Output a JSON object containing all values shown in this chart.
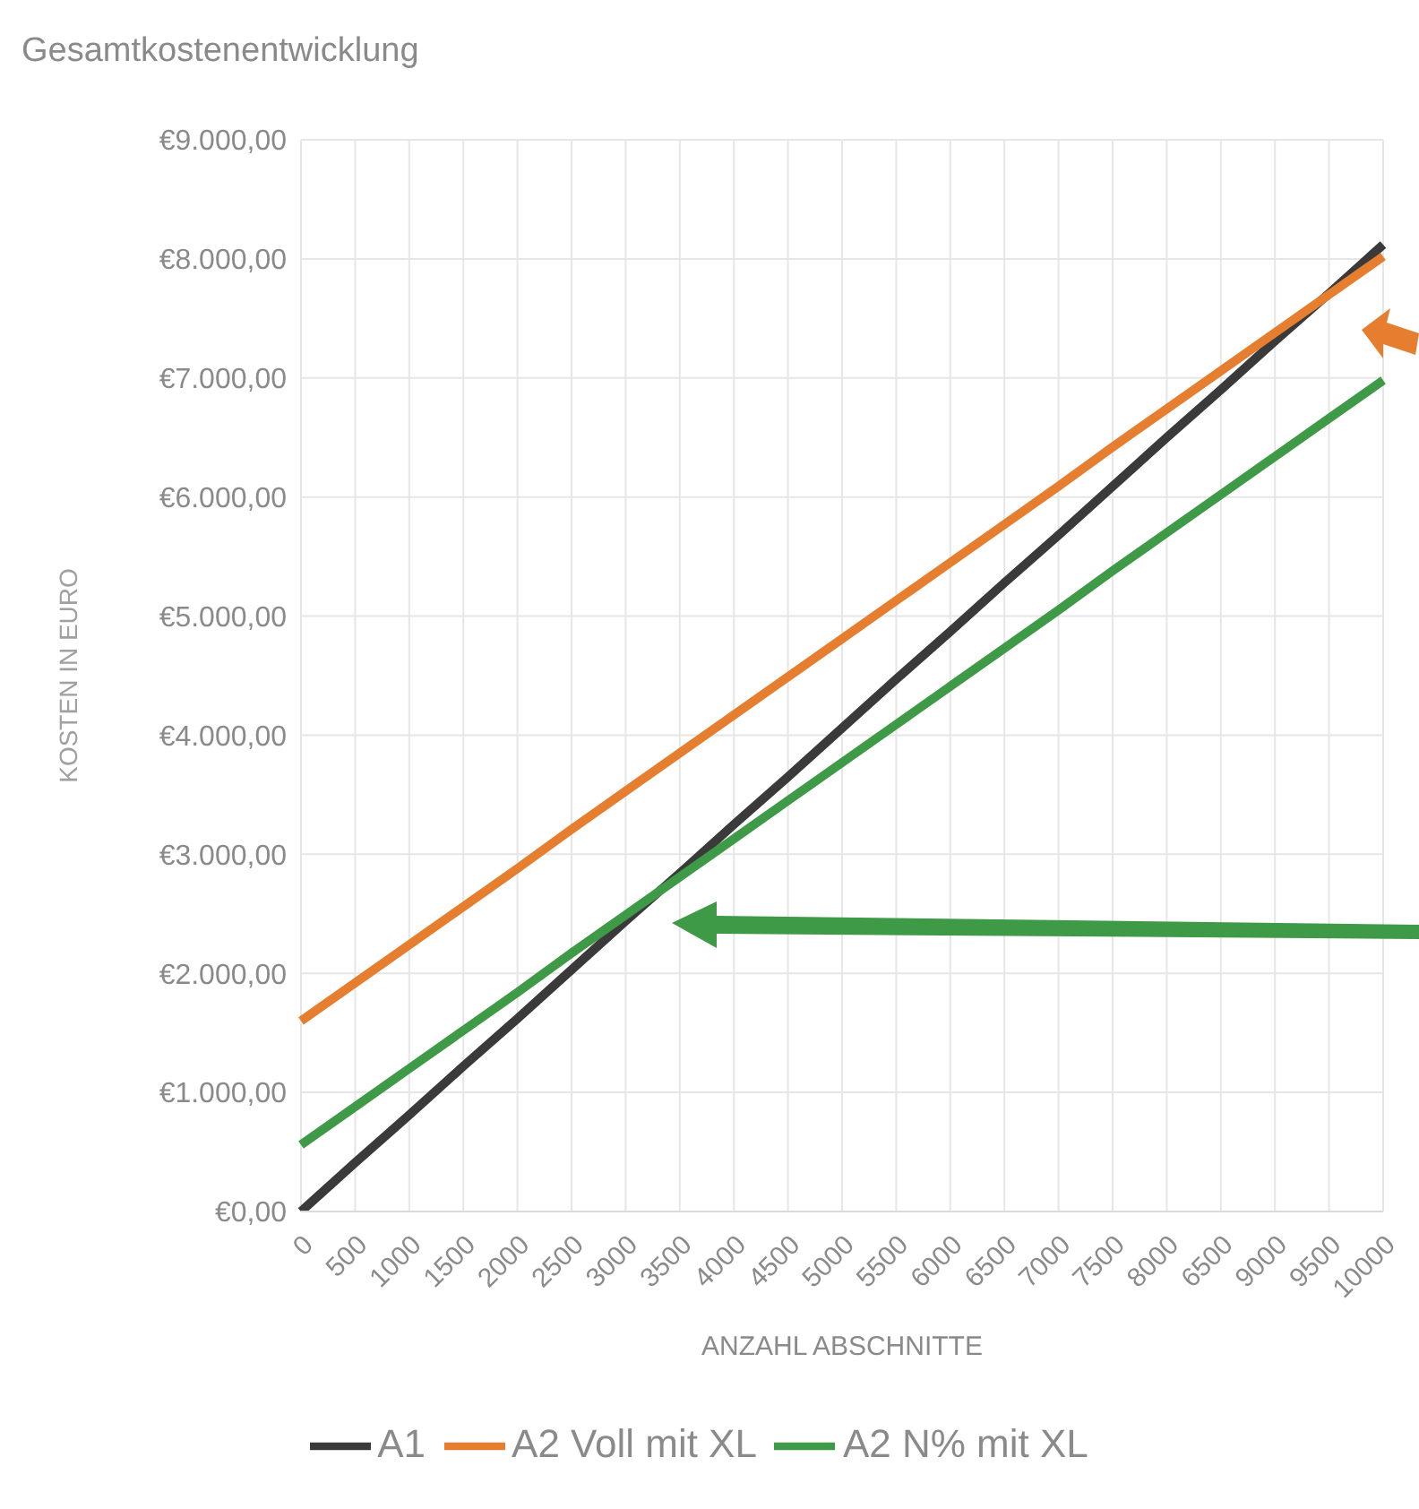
{
  "chart_data": {
    "type": "line",
    "title": "Gesamtkostenentwicklung",
    "xlabel": "ANZAHL ABSCHNITTE",
    "ylabel": "KOSTEN IN EURO",
    "categories": [
      "0",
      "500",
      "1000",
      "1500",
      "2000",
      "2500",
      "3000",
      "3500",
      "4000",
      "4500",
      "5000",
      "5500",
      "6000",
      "6500",
      "7000",
      "7500",
      "8000",
      "6500",
      "9000",
      "9500",
      "10000"
    ],
    "series": [
      {
        "name": "A1",
        "color": "#3a3a3a",
        "values": [
          0,
          410,
          810,
          1220,
          1620,
          2030,
          2440,
          2840,
          3250,
          3650,
          4060,
          4470,
          4870,
          5280,
          5680,
          6090,
          6500,
          6900,
          7310,
          7710,
          8120
        ]
      },
      {
        "name": "A2 Voll mit XL",
        "color": "#e67e30",
        "values": [
          1600,
          1920,
          2240,
          2560,
          2880,
          3210,
          3530,
          3850,
          4170,
          4490,
          4810,
          5130,
          5450,
          5770,
          6090,
          6420,
          6740,
          7060,
          7380,
          7700,
          8020
        ]
      },
      {
        "name": "A2 N% mit XL",
        "color": "#3f9a47",
        "values": [
          560,
          880,
          1200,
          1520,
          1840,
          2170,
          2490,
          2810,
          3130,
          3450,
          3770,
          4090,
          4410,
          4730,
          5050,
          5380,
          5700,
          6020,
          6340,
          6660,
          6980
        ]
      }
    ],
    "ylim": [
      0,
      9000
    ],
    "yticks": [
      {
        "value": 0,
        "label": "€0,00"
      },
      {
        "value": 1000,
        "label": "€1.000,00"
      },
      {
        "value": 2000,
        "label": "€2.000,00"
      },
      {
        "value": 3000,
        "label": "€3.000,00"
      },
      {
        "value": 4000,
        "label": "€4.000,00"
      },
      {
        "value": 5000,
        "label": "€5.000,00"
      },
      {
        "value": 6000,
        "label": "€6.000,00"
      },
      {
        "value": 7000,
        "label": "€7.000,00"
      },
      {
        "value": 8000,
        "label": "€8.000,00"
      },
      {
        "value": 9000,
        "label": "€9.000,00"
      }
    ],
    "grid": true,
    "legend": "bottom",
    "marker": "none",
    "line_style": "solid"
  }
}
